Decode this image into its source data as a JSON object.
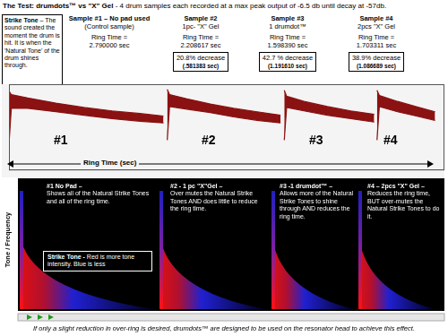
{
  "header": {
    "title": "The Test: drumdots™ vs \"X\" Gel",
    "subtitle": "- 4 drum samples each recorded at a max peak output of -6.5 db until decay at -57db."
  },
  "strike_tone_note": {
    "title": "Strike Tone",
    "text": "– The sound created the moment the drum is hit. It is when the 'Natural Tone' of the drum shines through."
  },
  "samples": [
    {
      "title": "Sample #1 – No pad used",
      "subtitle": "(Control sample)",
      "ring_time_label": "Ring Time =",
      "ring_time": "2.790000 sec"
    },
    {
      "title": "Sample #2",
      "subtitle": "1pc- \"X\" Gel",
      "ring_time_label": "Ring Time =",
      "ring_time": "2.208617 sec",
      "decrease": "20.8% decrease",
      "decrease_amount": "(.581383 sec)"
    },
    {
      "title": "Sample #3",
      "subtitle": "1 drumdot™",
      "ring_time_label": "Ring Time =",
      "ring_time": "1.598390 sec",
      "decrease": "42.7 % decrease",
      "decrease_amount": "(1.191610 sec)"
    },
    {
      "title": "Sample #4",
      "subtitle": "2pcs \"X\" Gel",
      "ring_time_label": "Ring Time =",
      "ring_time": "1.703311 sec",
      "decrease": "38.9% decrease",
      "decrease_amount": "(1.086689 sec)"
    }
  ],
  "waveform": {
    "markers": [
      "#1",
      "#2",
      "#3",
      "#4"
    ],
    "axis_label": "Ring Time (sec)"
  },
  "chart_data": {
    "type": "line",
    "x": [
      0,
      0.05,
      0.4,
      1.0,
      1.6,
      2.2,
      2.8,
      3.3,
      3.34,
      3.38,
      3.43,
      3.8,
      4.3,
      4.8,
      5.3,
      5.8,
      5.84,
      5.88,
      5.93,
      6.3,
      6.8,
      7.3,
      7.8,
      7.82,
      7.86,
      7.91,
      8.3,
      8.7,
      9.1
    ],
    "series": [
      {
        "color": "#8b1212",
        "values": [
          0.92,
          0.88,
          0.84,
          0.78,
          0.73,
          0.69,
          0.66,
          0.63,
          null,
          0.94,
          0.88,
          0.83,
          0.77,
          0.72,
          0.68,
          0.64,
          null,
          0.93,
          0.86,
          0.8,
          0.74,
          0.69,
          0.65,
          null,
          0.93,
          0.87,
          0.8,
          0.74,
          0.68
        ]
      },
      {
        "color": "#8b1212",
        "values": [
          0.3,
          0.72,
          0.72,
          0.68,
          0.64,
          0.6,
          0.57,
          0.55,
          null,
          0.35,
          0.74,
          0.71,
          0.67,
          0.62,
          0.58,
          0.55,
          null,
          0.35,
          0.73,
          0.69,
          0.64,
          0.6,
          0.56,
          null,
          0.35,
          0.74,
          0.68,
          0.63,
          0.58
        ]
      }
    ],
    "xlim": [
      0,
      9.3
    ],
    "ylim": [
      0,
      1
    ],
    "grid": false,
    "tick_labels": false
  },
  "spectrogram": {
    "y_label": "Tone / Frequency",
    "notes": [
      {
        "title": "#1 No Pad –",
        "text": "Shows all of the Natural Strike Tones and all of the ring time."
      },
      {
        "title": "#2 - 1 pc \"X\"Gel –",
        "text": "Over mutes the Natural Strike Tones AND does little to reduce the ring time."
      },
      {
        "title": "#3 -1 drumdot™ –",
        "text": "Allows more of the Natural Strike Tones to shine through AND reduces the ring time."
      },
      {
        "title": "#4 – 2pcs \"X\" Gel –",
        "text": "Reduces the ring time, BUT over-mutes the Natural Strike Tones to do it."
      }
    ],
    "legend_note": {
      "title": "Strike Tone -",
      "text": "Red is more tone intensity. Blue is less"
    }
  },
  "footer": "If only a slight reduction in over-ring is desired, drumdots™ are designed to be used on the resonator head to achieve this effect."
}
